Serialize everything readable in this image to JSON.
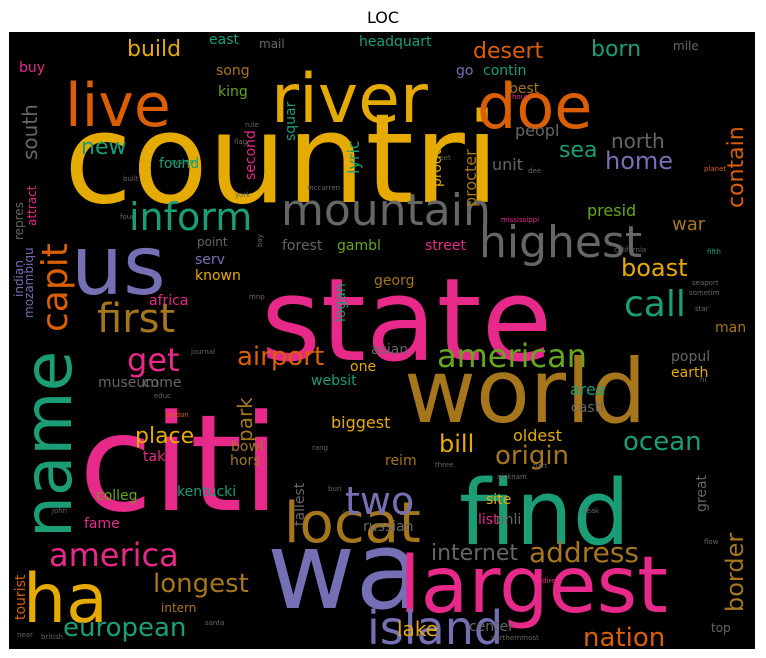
{
  "title": "LOC",
  "palette": {
    "pink": "#e7298a",
    "green": "#1b9e77",
    "orange": "#d95f02",
    "purple": "#7570b3",
    "yellow": "#e6ab02",
    "lime": "#66a61e",
    "brown": "#a6761d",
    "gray": "#666666",
    "background": "#000000"
  },
  "words": [
    {
      "text": "countri",
      "color": "yellow"
    },
    {
      "text": "state",
      "color": "pink"
    },
    {
      "text": "citi",
      "color": "pink"
    },
    {
      "text": "world",
      "color": "brown"
    },
    {
      "text": "wa",
      "color": "purple"
    },
    {
      "text": "find",
      "color": "green"
    },
    {
      "text": "us",
      "color": "purple"
    },
    {
      "text": "largest",
      "color": "pink"
    },
    {
      "text": "river",
      "color": "yellow"
    },
    {
      "text": "doe",
      "color": "orange"
    },
    {
      "text": "live",
      "color": "orange"
    },
    {
      "text": "ha",
      "color": "yellow"
    },
    {
      "text": "name",
      "color": "green"
    },
    {
      "text": "locat",
      "color": "brown"
    },
    {
      "text": "mountain",
      "color": "gray"
    },
    {
      "text": "highest",
      "color": "gray"
    },
    {
      "text": "island",
      "color": "purple"
    },
    {
      "text": "inform",
      "color": "green"
    },
    {
      "text": "first",
      "color": "brown"
    },
    {
      "text": "capit",
      "color": "orange"
    },
    {
      "text": "two",
      "color": "purple"
    },
    {
      "text": "america",
      "color": "pink"
    },
    {
      "text": "american",
      "color": "lime"
    },
    {
      "text": "call",
      "color": "green"
    },
    {
      "text": "get",
      "color": "pink"
    },
    {
      "text": "airport",
      "color": "orange"
    },
    {
      "text": "european",
      "color": "green"
    },
    {
      "text": "longest",
      "color": "brown"
    },
    {
      "text": "nation",
      "color": "orange"
    },
    {
      "text": "address",
      "color": "brown"
    },
    {
      "text": "internet",
      "color": "gray"
    },
    {
      "text": "ocean",
      "color": "green"
    },
    {
      "text": "origin",
      "color": "brown"
    },
    {
      "text": "border",
      "color": "brown"
    },
    {
      "text": "boast",
      "color": "yellow"
    },
    {
      "text": "home",
      "color": "purple"
    },
    {
      "text": "north",
      "color": "gray"
    },
    {
      "text": "contain",
      "color": "orange"
    },
    {
      "text": "sea",
      "color": "green"
    },
    {
      "text": "born",
      "color": "green"
    },
    {
      "text": "desert",
      "color": "orange"
    },
    {
      "text": "build",
      "color": "yellow"
    },
    {
      "text": "new",
      "color": "green"
    },
    {
      "text": "south",
      "color": "gray"
    },
    {
      "text": "place",
      "color": "yellow"
    },
    {
      "text": "bill",
      "color": "yellow"
    },
    {
      "text": "park",
      "color": "brown"
    },
    {
      "text": "lake",
      "color": "yellow"
    },
    {
      "text": "center",
      "color": "gray"
    },
    {
      "text": "presid",
      "color": "lime"
    },
    {
      "text": "war",
      "color": "brown"
    },
    {
      "text": "unit",
      "color": "gray"
    },
    {
      "text": "peopl",
      "color": "gray"
    },
    {
      "text": "procter",
      "color": "brown"
    },
    {
      "text": "produc",
      "color": "yellow"
    },
    {
      "text": "lyric",
      "color": "green"
    },
    {
      "text": "second",
      "color": "pink"
    },
    {
      "text": "squar",
      "color": "green"
    },
    {
      "text": "serv",
      "color": "purple"
    },
    {
      "text": "known",
      "color": "yellow"
    },
    {
      "text": "point",
      "color": "gray"
    },
    {
      "text": "forest",
      "color": "gray"
    },
    {
      "text": "gambl",
      "color": "lime"
    },
    {
      "text": "street",
      "color": "pink"
    },
    {
      "text": "onli",
      "color": "gray"
    },
    {
      "text": "georg",
      "color": "brown"
    },
    {
      "text": "africa",
      "color": "pink"
    },
    {
      "text": "museum",
      "color": "gray"
    },
    {
      "text": "logan",
      "color": "green"
    },
    {
      "text": "asian",
      "color": "gray"
    },
    {
      "text": "one",
      "color": "yellow"
    },
    {
      "text": "websit",
      "color": "green"
    },
    {
      "text": "come",
      "color": "gray"
    },
    {
      "text": "popul",
      "color": "gray"
    },
    {
      "text": "earth",
      "color": "yellow"
    },
    {
      "text": "area",
      "color": "green"
    },
    {
      "text": "castl",
      "color": "gray"
    },
    {
      "text": "man",
      "color": "brown"
    },
    {
      "text": "biggest",
      "color": "yellow"
    },
    {
      "text": "oldest",
      "color": "yellow"
    },
    {
      "text": "bowl",
      "color": "brown"
    },
    {
      "text": "hors",
      "color": "brown"
    },
    {
      "text": "take",
      "color": "pink"
    },
    {
      "text": "reim",
      "color": "brown"
    },
    {
      "text": "tallest",
      "color": "gray"
    },
    {
      "text": "kentucki",
      "color": "green"
    },
    {
      "text": "colleg",
      "color": "lime"
    },
    {
      "text": "fame",
      "color": "pink"
    },
    {
      "text": "intern",
      "color": "brown"
    },
    {
      "text": "russian",
      "color": "gray"
    },
    {
      "text": "list",
      "color": "pink"
    },
    {
      "text": "site",
      "color": "yellow"
    },
    {
      "text": "great",
      "color": "gray"
    },
    {
      "text": "top",
      "color": "gray"
    },
    {
      "text": "tourist",
      "color": "orange"
    },
    {
      "text": "indian",
      "color": "purple"
    },
    {
      "text": "mozambiqu",
      "color": "purple"
    },
    {
      "text": "repres",
      "color": "gray"
    },
    {
      "text": "attract",
      "color": "pink"
    },
    {
      "text": "buy",
      "color": "pink"
    },
    {
      "text": "song",
      "color": "brown"
    },
    {
      "text": "king",
      "color": "lime"
    },
    {
      "text": "east",
      "color": "green"
    },
    {
      "text": "mail",
      "color": "gray"
    },
    {
      "text": "headquart",
      "color": "green"
    },
    {
      "text": "go",
      "color": "purple"
    },
    {
      "text": "contin",
      "color": "green"
    },
    {
      "text": "best",
      "color": "brown"
    },
    {
      "text": "mile",
      "color": "gray"
    },
    {
      "text": "found",
      "color": "green"
    },
    {
      "text": "flag",
      "color": "gray"
    },
    {
      "text": "system",
      "color": "green"
    },
    {
      "text": "mccarren",
      "color": "gray"
    },
    {
      "text": "york",
      "color": "gray"
    },
    {
      "text": "built",
      "color": "gray"
    },
    {
      "text": "four",
      "color": "gray"
    },
    {
      "text": "mississippi",
      "color": "pink"
    },
    {
      "text": "planet",
      "color": "orange"
    },
    {
      "text": "hous",
      "color": "pink"
    },
    {
      "text": "california",
      "color": "gray"
    },
    {
      "text": "fifth",
      "color": "green"
    },
    {
      "text": "seaport",
      "color": "gray"
    },
    {
      "text": "sometim",
      "color": "gray"
    },
    {
      "text": "star",
      "color": "gray"
    },
    {
      "text": "land",
      "color": "pink"
    },
    {
      "text": "journal",
      "color": "gray"
    },
    {
      "text": "educ",
      "color": "gray"
    },
    {
      "text": "london",
      "color": "orange"
    },
    {
      "text": "rang",
      "color": "gray"
    },
    {
      "text": "nicknam",
      "color": "gray"
    },
    {
      "text": "three",
      "color": "gray"
    },
    {
      "text": "part",
      "color": "gray"
    },
    {
      "text": "buri",
      "color": "gray"
    },
    {
      "text": "la",
      "color": "gray"
    },
    {
      "text": "john",
      "color": "gray"
    },
    {
      "text": "peak",
      "color": "gray"
    },
    {
      "text": "flow",
      "color": "gray"
    },
    {
      "text": "direct",
      "color": "pink"
    },
    {
      "text": "near",
      "color": "gray"
    },
    {
      "text": "british",
      "color": "gray"
    },
    {
      "text": "santa",
      "color": "gray"
    },
    {
      "text": "northernmost",
      "color": "gray"
    },
    {
      "text": "hi",
      "color": "gray"
    },
    {
      "text": "mnp",
      "color": "gray"
    },
    {
      "text": "rule",
      "color": "gray"
    },
    {
      "text": "dee",
      "color": "gray"
    },
    {
      "text": "set",
      "color": "gray"
    },
    {
      "text": "bay",
      "color": "gray"
    }
  ]
}
